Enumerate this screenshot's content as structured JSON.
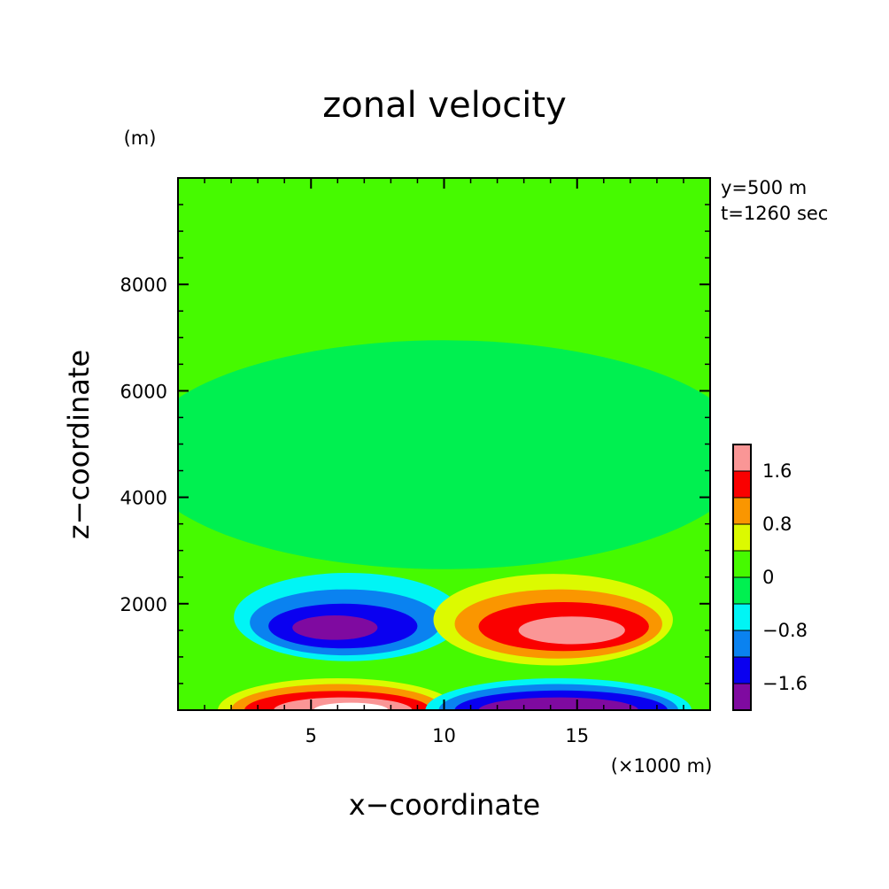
{
  "chart_data": {
    "type": "heatmap",
    "title": "zonal velocity",
    "xlabel": "x−coordinate",
    "ylabel": "z−coordinate",
    "x_unit": "(×1000 m)",
    "y_unit": "(m)",
    "xlim": [
      0,
      20
    ],
    "ylim": [
      0,
      10000
    ],
    "x_ticks": [
      "5",
      "10",
      "15"
    ],
    "x_tick_values": [
      5,
      10,
      15
    ],
    "y_ticks": [
      "2000",
      "4000",
      "6000",
      "8000"
    ],
    "y_tick_values": [
      2000,
      4000,
      6000,
      8000
    ],
    "annotations": [
      "y=500 m",
      "t=1260 sec"
    ],
    "colorbar": {
      "levels": [
        -2.0,
        -1.6,
        -1.2,
        -0.8,
        -0.4,
        0.0,
        0.4,
        0.8,
        1.2,
        1.6,
        2.0
      ],
      "colors": [
        "#7f0aa0",
        "#0a00f0",
        "#0a82f0",
        "#00f5f5",
        "#00f050",
        "#46fa00",
        "#dcfa00",
        "#fa9600",
        "#fa0000",
        "#fa9696"
      ],
      "tick_labels": [
        "−1.6",
        "−0.8",
        "0",
        "0.8",
        "1.6"
      ],
      "tick_values": [
        -1.6,
        -0.8,
        0.0,
        0.8,
        1.6
      ]
    },
    "features": [
      {
        "type": "base",
        "value": 0.2,
        "xmin": 0,
        "xmax": 20
      },
      {
        "type": "blob",
        "value": -0.2,
        "cx": 10,
        "cz": 4800,
        "rx": 11.5,
        "rz": 2150
      },
      {
        "type": "blob",
        "value": -0.6,
        "cx": 6.4,
        "cz": 1750,
        "rx": 4.3,
        "rz": 830
      },
      {
        "type": "blob",
        "value": -1.0,
        "cx": 6.3,
        "cz": 1650,
        "rx": 3.6,
        "rz": 620
      },
      {
        "type": "blob",
        "value": -1.4,
        "cx": 6.2,
        "cz": 1580,
        "rx": 2.8,
        "rz": 420
      },
      {
        "type": "blob",
        "value": -1.8,
        "cx": 5.9,
        "cz": 1550,
        "rx": 1.6,
        "rz": 230
      },
      {
        "type": "blob",
        "value": 0.6,
        "cx": 14.1,
        "cz": 1700,
        "rx": 4.5,
        "rz": 860
      },
      {
        "type": "blob",
        "value": 1.0,
        "cx": 14.3,
        "cz": 1620,
        "rx": 3.9,
        "rz": 650
      },
      {
        "type": "blob",
        "value": 1.4,
        "cx": 14.5,
        "cz": 1570,
        "rx": 3.2,
        "rz": 460
      },
      {
        "type": "blob",
        "value": 1.8,
        "cx": 14.8,
        "cz": 1500,
        "rx": 2.0,
        "rz": 260
      },
      {
        "type": "blob",
        "value": 0.6,
        "cx": 6.0,
        "cz": 0,
        "rx": 4.5,
        "rz": 600
      },
      {
        "type": "blob",
        "value": 1.0,
        "cx": 6.0,
        "cz": 0,
        "rx": 4.0,
        "rz": 490
      },
      {
        "type": "blob",
        "value": 1.4,
        "cx": 6.0,
        "cz": 0,
        "rx": 3.5,
        "rz": 360
      },
      {
        "type": "blob",
        "value": 1.8,
        "cx": 6.2,
        "cz": 0,
        "rx": 2.6,
        "rz": 240
      },
      {
        "type": "blob",
        "value": 2.2,
        "cx": 6.5,
        "cz": 0,
        "rx": 1.4,
        "rz": 140
      },
      {
        "type": "blob",
        "value": -0.6,
        "cx": 14.3,
        "cz": 0,
        "rx": 5.0,
        "rz": 600
      },
      {
        "type": "blob",
        "value": -1.0,
        "cx": 14.3,
        "cz": 0,
        "rx": 4.5,
        "rz": 490
      },
      {
        "type": "blob",
        "value": -1.4,
        "cx": 14.4,
        "cz": 0,
        "rx": 4.0,
        "rz": 370
      },
      {
        "type": "blob",
        "value": -1.8,
        "cx": 14.3,
        "cz": 0,
        "rx": 3.0,
        "rz": 240
      },
      {
        "type": "blob",
        "value": -2.2,
        "cx": 14.0,
        "cz": 0,
        "rx": 1.8,
        "rz": 140
      }
    ]
  }
}
